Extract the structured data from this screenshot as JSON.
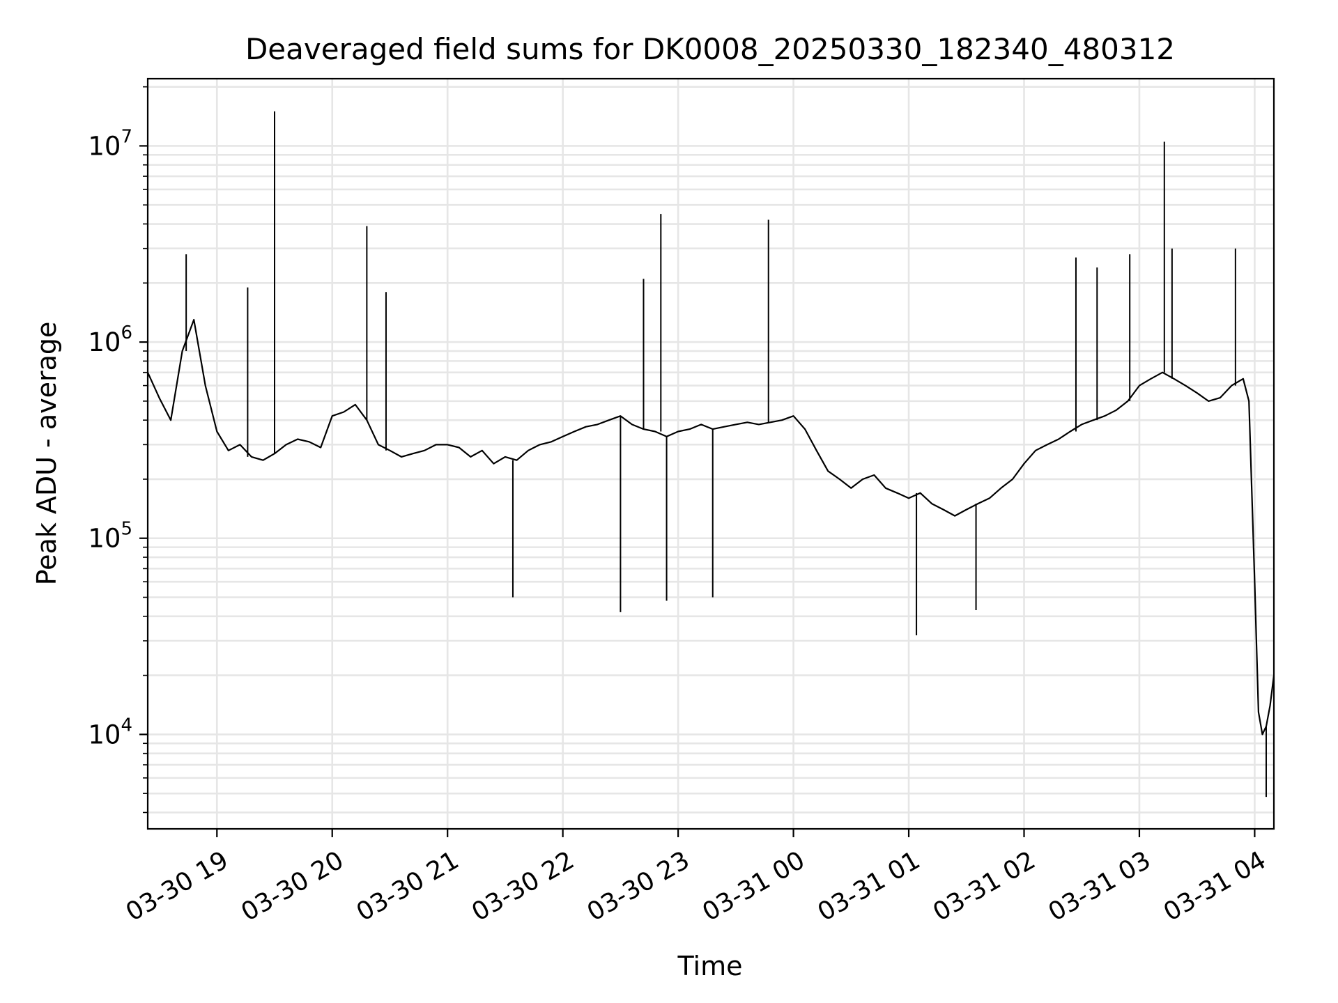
{
  "chart_data": {
    "type": "line",
    "title": "Deaveraged field sums for DK0008_20250330_182340_480312",
    "xlabel": "Time",
    "ylabel": "Peak ADU - average",
    "yscale": "log",
    "ylim": [
      3300,
      22000000
    ],
    "xlim": [
      "2025-03-30 18:24",
      "2025-03-31 04:10"
    ],
    "x_ticks": [
      {
        "time": "2025-03-30 19:00",
        "label": "03-30 19"
      },
      {
        "time": "2025-03-30 20:00",
        "label": "03-30 20"
      },
      {
        "time": "2025-03-30 21:00",
        "label": "03-30 21"
      },
      {
        "time": "2025-03-30 22:00",
        "label": "03-30 22"
      },
      {
        "time": "2025-03-30 23:00",
        "label": "03-30 23"
      },
      {
        "time": "2025-03-31 00:00",
        "label": "03-31 00"
      },
      {
        "time": "2025-03-31 01:00",
        "label": "03-31 01"
      },
      {
        "time": "2025-03-31 02:00",
        "label": "03-31 02"
      },
      {
        "time": "2025-03-31 03:00",
        "label": "03-31 03"
      },
      {
        "time": "2025-03-31 04:00",
        "label": "03-31 04"
      }
    ],
    "y_ticks": [
      {
        "value": 10000,
        "base": "10",
        "exp": "4"
      },
      {
        "value": 100000,
        "base": "10",
        "exp": "5"
      },
      {
        "value": 1000000,
        "base": "10",
        "exp": "6"
      },
      {
        "value": 10000000,
        "base": "10",
        "exp": "7"
      }
    ],
    "grid": true,
    "line_color": "#000000",
    "grid_color": "#e6e6e6",
    "series": [
      {
        "x": [
          "2025-03-30 18:24",
          "2025-03-30 18:30",
          "2025-03-30 18:36",
          "2025-03-30 18:42",
          "2025-03-30 18:48",
          "2025-03-30 18:54",
          "2025-03-30 19:00",
          "2025-03-30 19:06",
          "2025-03-30 19:12",
          "2025-03-30 19:18",
          "2025-03-30 19:24",
          "2025-03-30 19:30",
          "2025-03-30 19:36",
          "2025-03-30 19:42",
          "2025-03-30 19:48",
          "2025-03-30 19:54",
          "2025-03-30 20:00",
          "2025-03-30 20:06",
          "2025-03-30 20:12",
          "2025-03-30 20:18",
          "2025-03-30 20:24",
          "2025-03-30 20:30",
          "2025-03-30 20:36",
          "2025-03-30 20:42",
          "2025-03-30 20:48",
          "2025-03-30 20:54",
          "2025-03-30 21:00",
          "2025-03-30 21:06",
          "2025-03-30 21:12",
          "2025-03-30 21:18",
          "2025-03-30 21:24",
          "2025-03-30 21:30",
          "2025-03-30 21:36",
          "2025-03-30 21:42",
          "2025-03-30 21:48",
          "2025-03-30 21:54",
          "2025-03-30 22:00",
          "2025-03-30 22:06",
          "2025-03-30 22:12",
          "2025-03-30 22:18",
          "2025-03-30 22:24",
          "2025-03-30 22:30",
          "2025-03-30 22:36",
          "2025-03-30 22:42",
          "2025-03-30 22:48",
          "2025-03-30 22:54",
          "2025-03-30 23:00",
          "2025-03-30 23:06",
          "2025-03-30 23:12",
          "2025-03-30 23:18",
          "2025-03-30 23:24",
          "2025-03-30 23:30",
          "2025-03-30 23:36",
          "2025-03-30 23:42",
          "2025-03-30 23:48",
          "2025-03-30 23:54",
          "2025-03-31 00:00",
          "2025-03-31 00:06",
          "2025-03-31 00:12",
          "2025-03-31 00:18",
          "2025-03-31 00:24",
          "2025-03-31 00:30",
          "2025-03-31 00:36",
          "2025-03-31 00:42",
          "2025-03-31 00:48",
          "2025-03-31 00:54",
          "2025-03-31 01:00",
          "2025-03-31 01:06",
          "2025-03-31 01:12",
          "2025-03-31 01:18",
          "2025-03-31 01:24",
          "2025-03-31 01:30",
          "2025-03-31 01:36",
          "2025-03-31 01:42",
          "2025-03-31 01:48",
          "2025-03-31 01:54",
          "2025-03-31 02:00",
          "2025-03-31 02:06",
          "2025-03-31 02:12",
          "2025-03-31 02:18",
          "2025-03-31 02:24",
          "2025-03-31 02:30",
          "2025-03-31 02:36",
          "2025-03-31 02:42",
          "2025-03-31 02:48",
          "2025-03-31 02:54",
          "2025-03-31 03:00",
          "2025-03-31 03:06",
          "2025-03-31 03:12",
          "2025-03-31 03:18",
          "2025-03-31 03:24",
          "2025-03-31 03:30",
          "2025-03-31 03:36",
          "2025-03-31 03:42",
          "2025-03-31 03:48",
          "2025-03-31 03:54",
          "2025-03-31 03:57",
          "2025-03-31 04:00",
          "2025-03-31 04:02",
          "2025-03-31 04:04",
          "2025-03-31 04:06",
          "2025-03-31 04:08",
          "2025-03-31 04:10"
        ],
        "y": [
          700000,
          520000,
          400000,
          900000,
          1300000,
          600000,
          350000,
          280000,
          300000,
          260000,
          250000,
          270000,
          300000,
          320000,
          310000,
          290000,
          420000,
          440000,
          480000,
          400000,
          300000,
          280000,
          260000,
          270000,
          280000,
          300000,
          300000,
          290000,
          260000,
          280000,
          240000,
          260000,
          250000,
          280000,
          300000,
          310000,
          330000,
          350000,
          370000,
          380000,
          400000,
          420000,
          380000,
          360000,
          350000,
          330000,
          350000,
          360000,
          380000,
          360000,
          370000,
          380000,
          390000,
          380000,
          390000,
          400000,
          420000,
          360000,
          280000,
          220000,
          200000,
          180000,
          200000,
          210000,
          180000,
          170000,
          160000,
          170000,
          150000,
          140000,
          130000,
          140000,
          150000,
          160000,
          180000,
          200000,
          240000,
          280000,
          300000,
          320000,
          350000,
          380000,
          400000,
          420000,
          450000,
          500000,
          600000,
          650000,
          700000,
          650000,
          600000,
          550000,
          500000,
          520000,
          600000,
          650000,
          500000,
          60000,
          13000,
          10000,
          11000,
          14000,
          20000
        ]
      }
    ],
    "spikes": [
      {
        "x": "2025-03-30 18:44",
        "y": 2800000
      },
      {
        "x": "2025-03-30 19:16",
        "y": 1900000
      },
      {
        "x": "2025-03-30 19:30",
        "y": 15000000
      },
      {
        "x": "2025-03-30 20:18",
        "y": 3900000
      },
      {
        "x": "2025-03-30 20:28",
        "y": 1800000
      },
      {
        "x": "2025-03-30 21:34",
        "y": 50000
      },
      {
        "x": "2025-03-30 22:30",
        "y": 42000
      },
      {
        "x": "2025-03-30 22:42",
        "y": 2100000
      },
      {
        "x": "2025-03-30 22:51",
        "y": 4500000
      },
      {
        "x": "2025-03-30 22:54",
        "y": 48000
      },
      {
        "x": "2025-03-30 23:18",
        "y": 50000
      },
      {
        "x": "2025-03-30 23:47",
        "y": 4200000
      },
      {
        "x": "2025-03-31 01:04",
        "y": 32000
      },
      {
        "x": "2025-03-31 01:35",
        "y": 43000
      },
      {
        "x": "2025-03-31 02:27",
        "y": 2700000
      },
      {
        "x": "2025-03-31 02:38",
        "y": 2400000
      },
      {
        "x": "2025-03-31 02:55",
        "y": 2800000
      },
      {
        "x": "2025-03-31 03:13",
        "y": 10500000
      },
      {
        "x": "2025-03-31 03:17",
        "y": 3000000
      },
      {
        "x": "2025-03-31 03:50",
        "y": 3000000
      },
      {
        "x": "2025-03-31 04:06",
        "y": 4800
      }
    ]
  }
}
